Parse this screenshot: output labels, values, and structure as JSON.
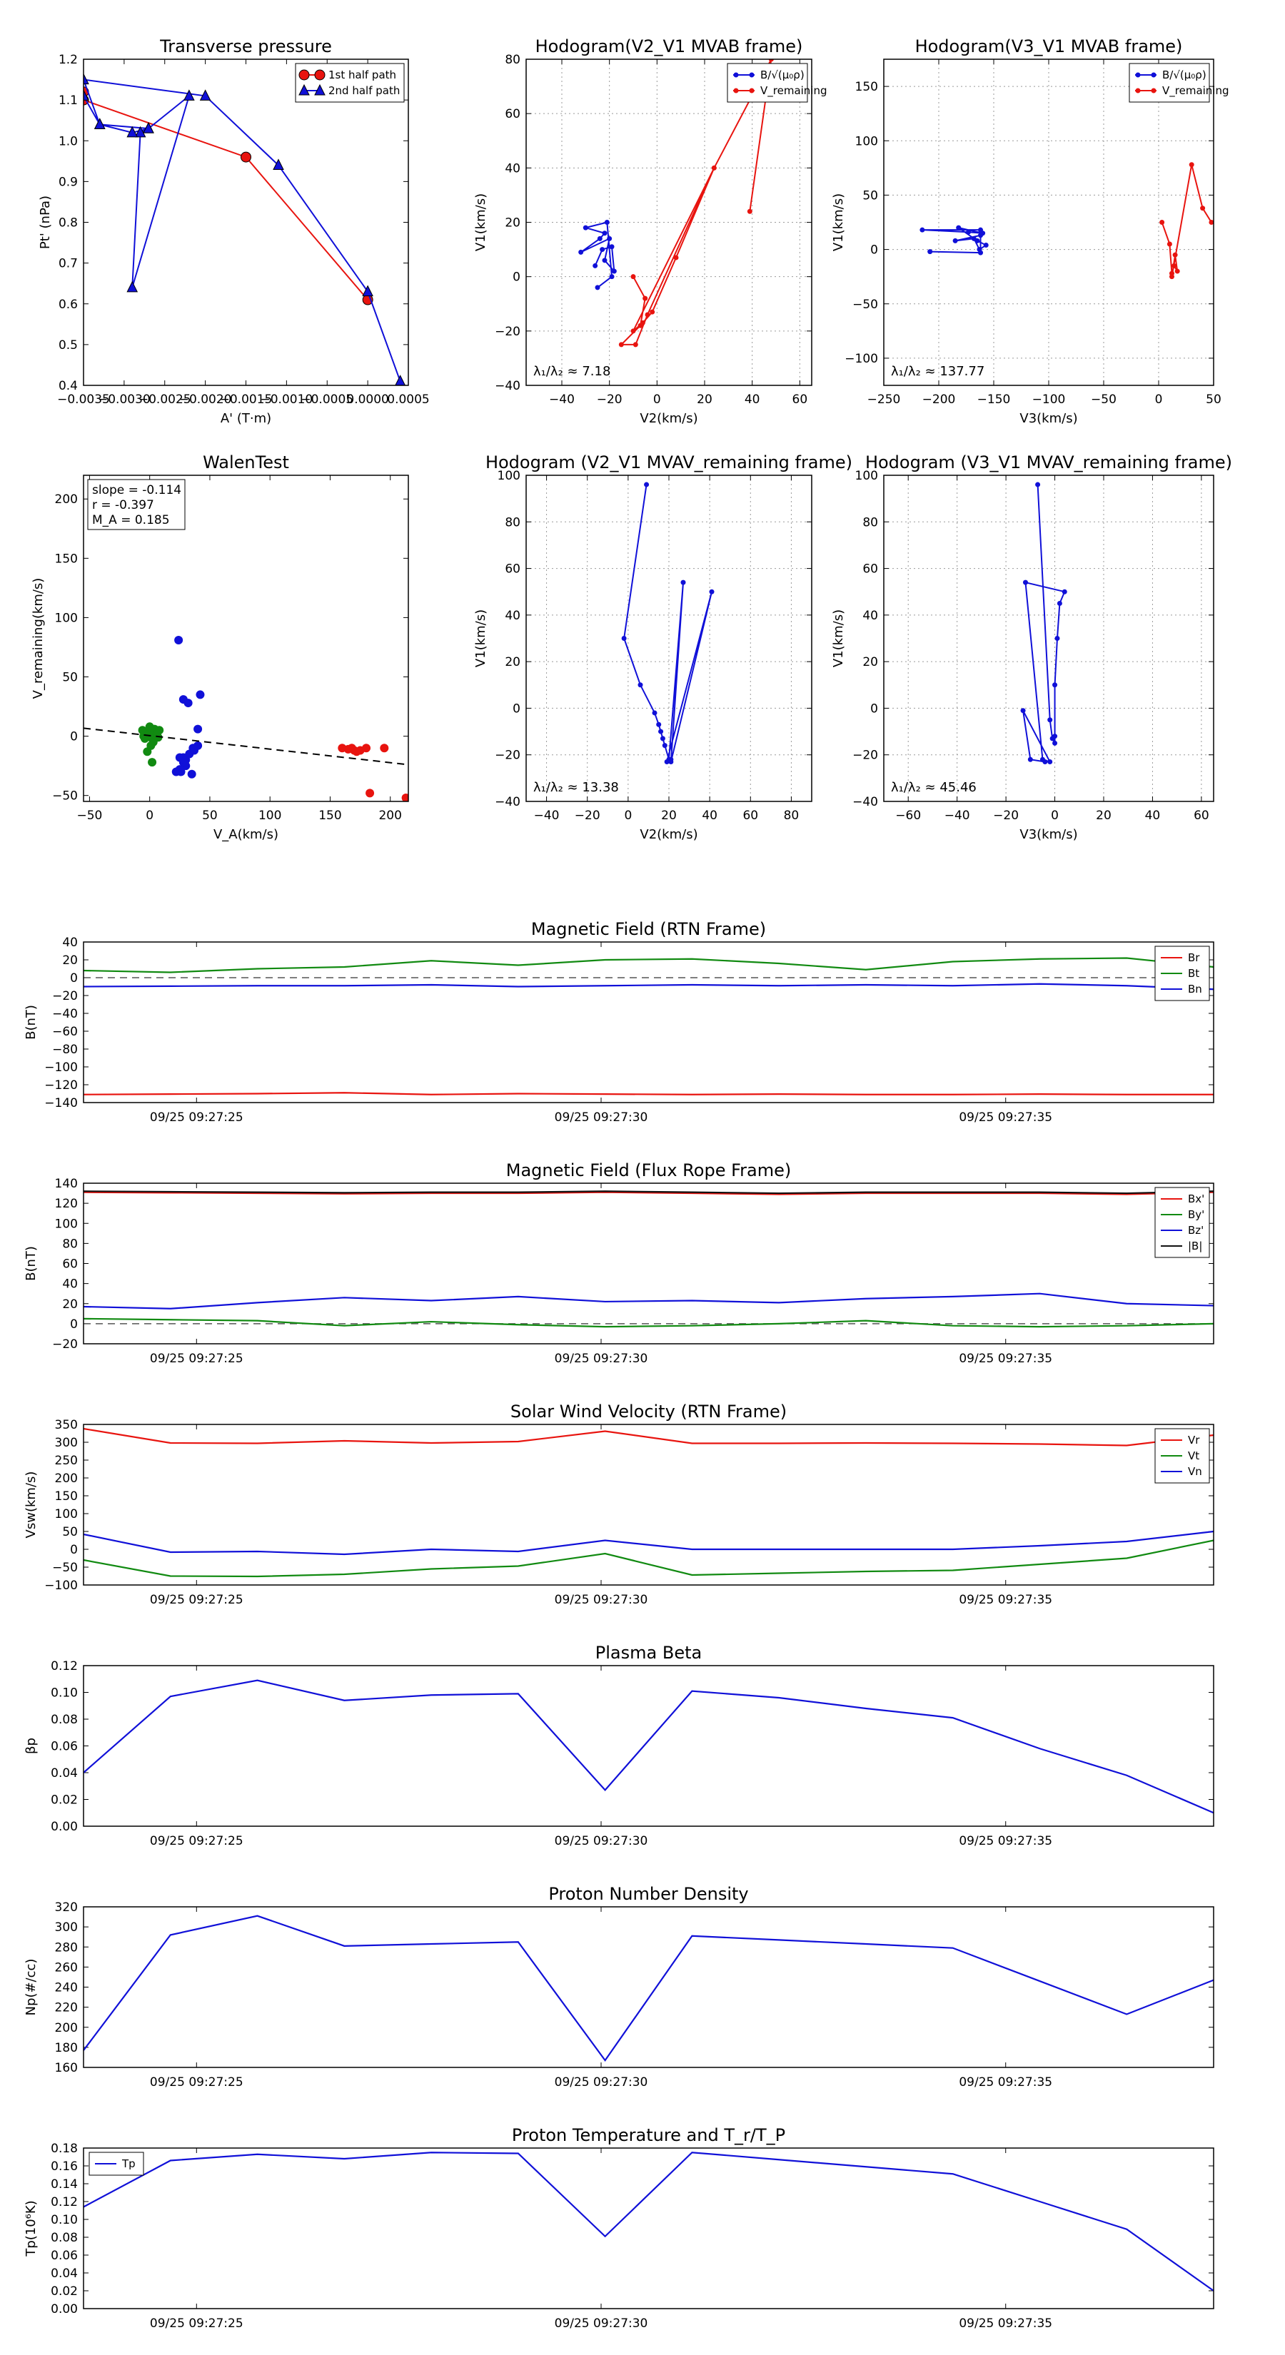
{
  "figure": {
    "colors": {
      "red": "#e8140f",
      "green": "#118a11",
      "blue": "#1010d8",
      "black": "#111111",
      "grid": "#9a9a9a"
    },
    "time_labels": [
      "09/25 09:27:25",
      "09/25 09:27:30",
      "09/25 09:27:35"
    ]
  },
  "chart_data": [
    {
      "id": "pt",
      "type": "line",
      "title": "Transverse pressure",
      "xlabel": "A' (T·m)",
      "ylabel": "Pt' (nPa)",
      "xlim": [
        -0.0035,
        0.0005
      ],
      "ylim": [
        0.4,
        1.2
      ],
      "xticks": [
        -0.0035,
        -0.003,
        -0.0025,
        -0.002,
        -0.0015,
        -0.001,
        -0.0005,
        0.0,
        0.0005
      ],
      "xtick_labels": [
        "−0.0035",
        "−0.0030",
        "−0.0025",
        "−0.0020",
        "−0.0015",
        "−0.0010",
        "−0.0005",
        "0.0000",
        "0.0005"
      ],
      "yticks": [
        0.4,
        0.5,
        0.6,
        0.7,
        0.8,
        0.9,
        1.0,
        1.1,
        1.2
      ],
      "ytick_labels": [
        "0.4",
        "0.5",
        "0.6",
        "0.7",
        "0.8",
        "0.9",
        "1.0",
        "1.1",
        "1.2"
      ],
      "legend": "top-right",
      "grid": false,
      "series": [
        {
          "name": "1st half path",
          "color": "red",
          "marker": "circle",
          "x": [
            -0.0035,
            -0.0035,
            -0.0015,
            0.0
          ],
          "y": [
            1.12,
            1.1,
            0.96,
            0.61
          ]
        },
        {
          "name": "2nd half path",
          "color": "blue",
          "marker": "triangle",
          "x": [
            -0.0035,
            -0.0033,
            -0.0027,
            -0.0028,
            -0.0029,
            -0.0022,
            -0.0027,
            -0.0029,
            -0.0033,
            -0.0035,
            -0.002,
            -0.0011,
            0.0,
            0.0004
          ],
          "y": [
            1.11,
            1.04,
            1.03,
            1.02,
            0.64,
            1.11,
            1.03,
            1.02,
            1.04,
            1.15,
            1.11,
            0.94,
            0.63,
            0.41
          ]
        }
      ]
    },
    {
      "id": "h1",
      "type": "line",
      "title": "Hodogram(V2_V1 MVAB frame)",
      "xlabel": "V2(km/s)",
      "ylabel": "V1(km/s)",
      "xlim": [
        -55,
        65
      ],
      "ylim": [
        -40,
        80
      ],
      "xticks": [
        -40,
        -20,
        0,
        20,
        40,
        60
      ],
      "xtick_labels": [
        "−40",
        "−20",
        "0",
        "20",
        "40",
        "60"
      ],
      "yticks": [
        -40,
        -20,
        0,
        20,
        40,
        60,
        80
      ],
      "ytick_labels": [
        "−40",
        "−20",
        "0",
        "20",
        "40",
        "60",
        "80"
      ],
      "legend": "top-right",
      "grid": true,
      "annotation": "λ₁/λ₂ ≈ 7.18",
      "series": [
        {
          "name": "B/√(μ₀ρ)",
          "color": "blue",
          "marker": "dot",
          "x": [
            -25,
            -19,
            -21,
            -30,
            -22,
            -24,
            -32,
            -20,
            -22,
            -18,
            -19,
            -23,
            -26
          ],
          "y": [
            -4,
            0,
            20,
            18,
            16,
            14,
            9,
            14,
            6,
            2,
            11,
            10,
            4
          ]
        },
        {
          "name": "V_remaining",
          "color": "red",
          "marker": "dot",
          "x": [
            -10,
            -5,
            -7,
            -15,
            -9,
            -4,
            24,
            8,
            -2,
            -6,
            -10,
            24,
            48,
            39
          ],
          "y": [
            0,
            -8,
            -18,
            -25,
            -25,
            -14,
            40,
            7,
            -13,
            -17,
            -20,
            40,
            80,
            24
          ]
        }
      ]
    },
    {
      "id": "h2",
      "type": "line",
      "title": "Hodogram(V3_V1 MVAB frame)",
      "xlabel": "V3(km/s)",
      "ylabel": "V1(km/s)",
      "xlim": [
        -250,
        50
      ],
      "ylim": [
        -125,
        175
      ],
      "xticks": [
        -250,
        -200,
        -150,
        -100,
        -50,
        0,
        50
      ],
      "xtick_labels": [
        "−250",
        "−200",
        "−150",
        "−100",
        "−50",
        "0",
        "50"
      ],
      "yticks": [
        -100,
        -50,
        0,
        50,
        100,
        150
      ],
      "ytick_labels": [
        "−100",
        "−50",
        "0",
        "50",
        "100",
        "150"
      ],
      "legend": "top-right",
      "grid": true,
      "annotation": "λ₁/λ₂ ≈ 137.77",
      "series": [
        {
          "name": "B/√(μ₀ρ)",
          "color": "blue",
          "marker": "dot",
          "x": [
            -208,
            -162,
            -162,
            -215,
            -173,
            -160,
            -182,
            -165,
            -157,
            -163,
            -168,
            -185,
            -162
          ],
          "y": [
            -2,
            -3,
            18,
            18,
            16,
            15,
            20,
            8,
            4,
            0,
            10,
            8,
            13
          ]
        },
        {
          "name": "V_remaining",
          "color": "red",
          "marker": "dot",
          "x": [
            3,
            10,
            12,
            14,
            17,
            15,
            12,
            30,
            40,
            48
          ],
          "y": [
            25,
            5,
            -22,
            -15,
            -20,
            -5,
            -25,
            78,
            38,
            25
          ]
        }
      ]
    },
    {
      "id": "walen",
      "type": "scatter",
      "title": "WalenTest",
      "xlabel": "V_A(km/s)",
      "ylabel": "V_remaining(km/s)",
      "xlim": [
        -55,
        215
      ],
      "ylim": [
        -55,
        220
      ],
      "xticks": [
        -50,
        0,
        50,
        100,
        150,
        200
      ],
      "xtick_labels": [
        "−50",
        "0",
        "50",
        "100",
        "150",
        "200"
      ],
      "yticks": [
        -50,
        0,
        50,
        100,
        150,
        200
      ],
      "ytick_labels": [
        "−50",
        "0",
        "50",
        "100",
        "150",
        "200"
      ],
      "grid": false,
      "stats": [
        "slope = -0.114",
        "r = -0.397",
        "M_A = 0.185"
      ],
      "fit": {
        "slope": -0.114,
        "intercept": 0.5
      },
      "series": [
        {
          "color": "green",
          "x": [
            -5,
            -3,
            0,
            2,
            4,
            6,
            8,
            3,
            -2,
            1,
            5,
            7,
            0,
            -4,
            2,
            4,
            -6,
            6
          ],
          "y": [
            0,
            2,
            4,
            -2,
            6,
            3,
            5,
            -5,
            -13,
            -8,
            1,
            -1,
            8,
            -2,
            -22,
            3,
            5,
            2
          ]
        },
        {
          "color": "blue",
          "x": [
            25,
            28,
            30,
            33,
            37,
            40,
            22,
            26,
            24,
            28,
            32,
            35,
            28,
            30,
            36,
            42,
            25,
            40
          ],
          "y": [
            -18,
            -22,
            -25,
            -15,
            -12,
            6,
            -30,
            -30,
            81,
            31,
            28,
            -32,
            -18,
            -20,
            -10,
            35,
            -28,
            -8
          ]
        },
        {
          "color": "red",
          "x": [
            160,
            165,
            170,
            168,
            172,
            175,
            180,
            195,
            183,
            213
          ],
          "y": [
            -10,
            -11,
            -12,
            -10,
            -13,
            -12,
            -10,
            -10,
            -48,
            -52
          ]
        }
      ]
    },
    {
      "id": "h3",
      "type": "line",
      "title": "Hodogram (V2_V1 MVAV_remaining frame)",
      "xlabel": "V2(km/s)",
      "ylabel": "V1(km/s)",
      "xlim": [
        -50,
        90
      ],
      "ylim": [
        -40,
        100
      ],
      "xticks": [
        -40,
        -20,
        0,
        20,
        40,
        60,
        80
      ],
      "xtick_labels": [
        "−40",
        "−20",
        "0",
        "20",
        "40",
        "60",
        "80"
      ],
      "yticks": [
        -40,
        -20,
        0,
        20,
        40,
        60,
        80,
        100
      ],
      "ytick_labels": [
        "−40",
        "−20",
        "0",
        "20",
        "40",
        "60",
        "80",
        "100"
      ],
      "grid": true,
      "annotation": "λ₁/λ₂ ≈ 13.38",
      "series": [
        {
          "color": "blue",
          "marker": "dot",
          "x": [
            9,
            -2,
            6,
            13,
            15,
            16,
            17,
            18,
            20,
            27,
            21,
            41,
            19,
            21
          ],
          "y": [
            96,
            30,
            10,
            -2,
            -7,
            -10,
            -13,
            -16,
            -22,
            54,
            -23,
            50,
            -23,
            -22
          ]
        }
      ]
    },
    {
      "id": "h4",
      "type": "line",
      "title": "Hodogram (V3_V1 MVAV_remaining frame)",
      "xlabel": "V3(km/s)",
      "ylabel": "V1(km/s)",
      "xlim": [
        -70,
        65
      ],
      "ylim": [
        -40,
        100
      ],
      "xticks": [
        -60,
        -40,
        -20,
        0,
        20,
        40,
        60
      ],
      "xtick_labels": [
        "−60",
        "−40",
        "−20",
        "0",
        "20",
        "40",
        "60"
      ],
      "yticks": [
        -40,
        -20,
        0,
        20,
        40,
        60,
        80,
        100
      ],
      "ytick_labels": [
        "−40",
        "−20",
        "0",
        "20",
        "40",
        "60",
        "80",
        "100"
      ],
      "grid": true,
      "annotation": "λ₁/λ₂ ≈ 45.46",
      "series": [
        {
          "color": "blue",
          "marker": "dot",
          "x": [
            -7,
            -2,
            -1,
            0,
            0,
            0,
            1,
            2,
            4,
            -12,
            -5,
            -2,
            -13,
            -10,
            -4
          ],
          "y": [
            96,
            -5,
            -13,
            -15,
            -12,
            10,
            30,
            45,
            50,
            54,
            -22,
            -23,
            -1,
            -22,
            -23
          ]
        }
      ]
    },
    {
      "id": "bfield_rtn",
      "type": "line",
      "title": "Magnetic Field (RTN Frame)",
      "ylabel": "B(nT)",
      "ylim": [
        -140,
        40
      ],
      "yticks": [
        -140,
        -120,
        -100,
        -80,
        -60,
        -40,
        -20,
        0,
        20,
        40
      ],
      "ytick_labels": [
        "−140",
        "−120",
        "−100",
        "−80",
        "−60",
        "−40",
        "−20",
        "0",
        "20",
        "40"
      ],
      "zero_line": true,
      "legend": "top-right",
      "series": [
        {
          "name": "Br",
          "color": "red",
          "y": [
            -131,
            -130.5,
            -130,
            -129,
            -131,
            -130,
            -130.5,
            -131,
            -130.5,
            -131,
            -131,
            -130.5,
            -131,
            -131
          ]
        },
        {
          "name": "Bt",
          "color": "green",
          "y": [
            8,
            6,
            10,
            12,
            19,
            14,
            20,
            21,
            16,
            9,
            18,
            21,
            22,
            12
          ]
        },
        {
          "name": "Bn",
          "color": "blue",
          "y": [
            -10,
            -9.5,
            -9,
            -9,
            -8,
            -10,
            -9,
            -8,
            -9,
            -8,
            -9,
            -7,
            -9,
            -13
          ]
        }
      ]
    },
    {
      "id": "bfield_fr",
      "type": "line",
      "title": "Magnetic Field (Flux Rope Frame)",
      "ylabel": "B(nT)",
      "ylim": [
        -20,
        140
      ],
      "yticks": [
        -20,
        0,
        20,
        40,
        60,
        80,
        100,
        120,
        140
      ],
      "ytick_labels": [
        "−20",
        "0",
        "20",
        "40",
        "60",
        "80",
        "100",
        "120",
        "140"
      ],
      "zero_line": true,
      "legend": "top-right",
      "series": [
        {
          "name": "Bx'",
          "color": "red",
          "y": [
            131,
            130.5,
            130,
            129.5,
            130,
            130,
            131,
            130,
            129,
            130,
            130,
            130,
            129,
            131
          ]
        },
        {
          "name": "By'",
          "color": "green",
          "y": [
            5,
            4,
            3,
            -2,
            2,
            -1,
            -3,
            -2,
            0,
            3,
            -2,
            -3,
            -2,
            0
          ]
        },
        {
          "name": "Bz'",
          "color": "blue",
          "y": [
            17,
            15,
            21,
            26,
            23,
            27,
            22,
            23,
            21,
            25,
            27,
            30,
            20,
            18
          ]
        },
        {
          "name": "|B|",
          "color": "black",
          "y": [
            132,
            131.5,
            131,
            130.5,
            131,
            131,
            132,
            131,
            130,
            131,
            131,
            131,
            130,
            132
          ]
        }
      ]
    },
    {
      "id": "vsw",
      "type": "line",
      "title": "Solar Wind Velocity (RTN Frame)",
      "ylabel": "Vsw(km/s)",
      "ylim": [
        -100,
        350
      ],
      "yticks": [
        -100,
        -50,
        0,
        50,
        100,
        150,
        200,
        250,
        300,
        350
      ],
      "ytick_labels": [
        "−100",
        "−50",
        "0",
        "50",
        "100",
        "150",
        "200",
        "250",
        "300",
        "350"
      ],
      "legend": "top-right",
      "series": [
        {
          "name": "Vr",
          "color": "red",
          "y": [
            338,
            298,
            297,
            304,
            298,
            302,
            331,
            297,
            297,
            298,
            297,
            295,
            291,
            320
          ]
        },
        {
          "name": "Vt",
          "color": "green",
          "y": [
            -30,
            -75,
            -76,
            -70,
            -55,
            -47,
            -12,
            -72,
            -67,
            -62,
            -59,
            -42,
            -25,
            25
          ]
        },
        {
          "name": "Vn",
          "color": "blue",
          "y": [
            42,
            -8,
            -6,
            -14,
            0,
            -6,
            25,
            0,
            0,
            0,
            0,
            10,
            22,
            50
          ]
        }
      ]
    },
    {
      "id": "beta",
      "type": "line",
      "title": "Plasma Beta",
      "ylabel": "βp",
      "ylim": [
        0,
        0.12
      ],
      "yticks": [
        0,
        0.02,
        0.04,
        0.06,
        0.08,
        0.1,
        0.12
      ],
      "ytick_labels": [
        "0.00",
        "0.02",
        "0.04",
        "0.06",
        "0.08",
        "0.10",
        "0.12"
      ],
      "series": [
        {
          "color": "blue",
          "y": [
            0.04,
            0.097,
            0.109,
            0.094,
            0.098,
            0.099,
            0.027,
            0.101,
            0.096,
            0.088,
            0.081,
            0.058,
            0.038,
            0.01
          ]
        }
      ]
    },
    {
      "id": "np",
      "type": "line",
      "title": "Proton Number Density",
      "ylabel": "Np(#/cc)",
      "ylim": [
        160,
        320
      ],
      "yticks": [
        160,
        180,
        200,
        220,
        240,
        260,
        280,
        300,
        320
      ],
      "ytick_labels": [
        "160",
        "180",
        "200",
        "220",
        "240",
        "260",
        "280",
        "300",
        "320"
      ],
      "series": [
        {
          "color": "blue",
          "y": [
            177,
            292,
            311,
            281,
            283,
            285,
            167,
            291,
            287,
            283,
            279,
            246,
            213,
            247
          ]
        }
      ]
    },
    {
      "id": "tp",
      "type": "line",
      "title": "Proton Temperature and T_r/T_P",
      "ylabel": "Tp(10⁶K)",
      "ylim": [
        0,
        0.18
      ],
      "yticks": [
        0,
        0.02,
        0.04,
        0.06,
        0.08,
        0.1,
        0.12,
        0.14,
        0.16,
        0.18
      ],
      "ytick_labels": [
        "0.00",
        "0.02",
        "0.04",
        "0.06",
        "0.08",
        "0.10",
        "0.12",
        "0.14",
        "0.16",
        "0.18"
      ],
      "legend": "top-left",
      "series": [
        {
          "name": "Tp",
          "color": "blue",
          "y": [
            0.114,
            0.166,
            0.173,
            0.168,
            0.175,
            0.174,
            0.081,
            0.175,
            0.167,
            0.159,
            0.151,
            0.12,
            0.089,
            0.02
          ]
        }
      ]
    }
  ]
}
